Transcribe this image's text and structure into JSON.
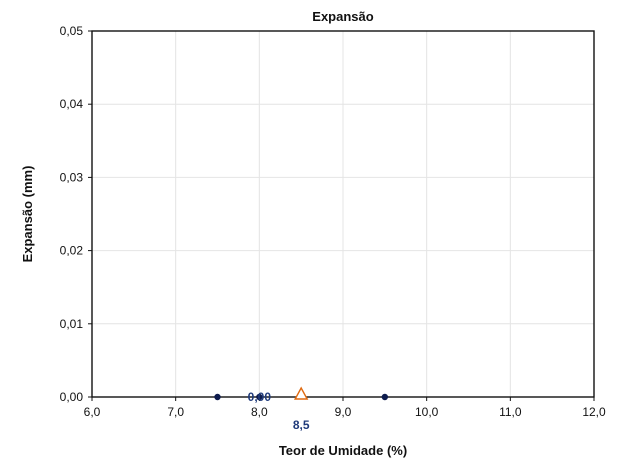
{
  "chart_data": {
    "type": "scatter",
    "title": "Expansão",
    "xlabel": "Teor de Umidade (%)",
    "ylabel": "Expansão (mm)",
    "xlim": [
      6.0,
      12.0
    ],
    "ylim": [
      0.0,
      0.05
    ],
    "x_ticks": [
      "6,0",
      "7,0",
      "8,0",
      "9,0",
      "10,0",
      "11,0",
      "12,0"
    ],
    "y_ticks": [
      "0,00",
      "0,01",
      "0,02",
      "0,03",
      "0,04",
      "0,05"
    ],
    "grid": true,
    "series": [
      {
        "points": [
          {
            "x": 7.5,
            "y": 0.0
          },
          {
            "x": 8.0,
            "y": 0.0
          },
          {
            "x": 9.5,
            "y": 0.0
          }
        ],
        "marker": "circle",
        "color": "#0d1b4d"
      },
      {
        "points": [
          {
            "x": 8.5,
            "y": 0.0
          }
        ],
        "marker": "triangle-open",
        "color": "#e06a10"
      }
    ],
    "annotations": [
      {
        "text": "0,00",
        "x": 8.0,
        "y": 0.0
      },
      {
        "text": "8,5",
        "x": 8.5,
        "y": 0.0
      }
    ]
  }
}
